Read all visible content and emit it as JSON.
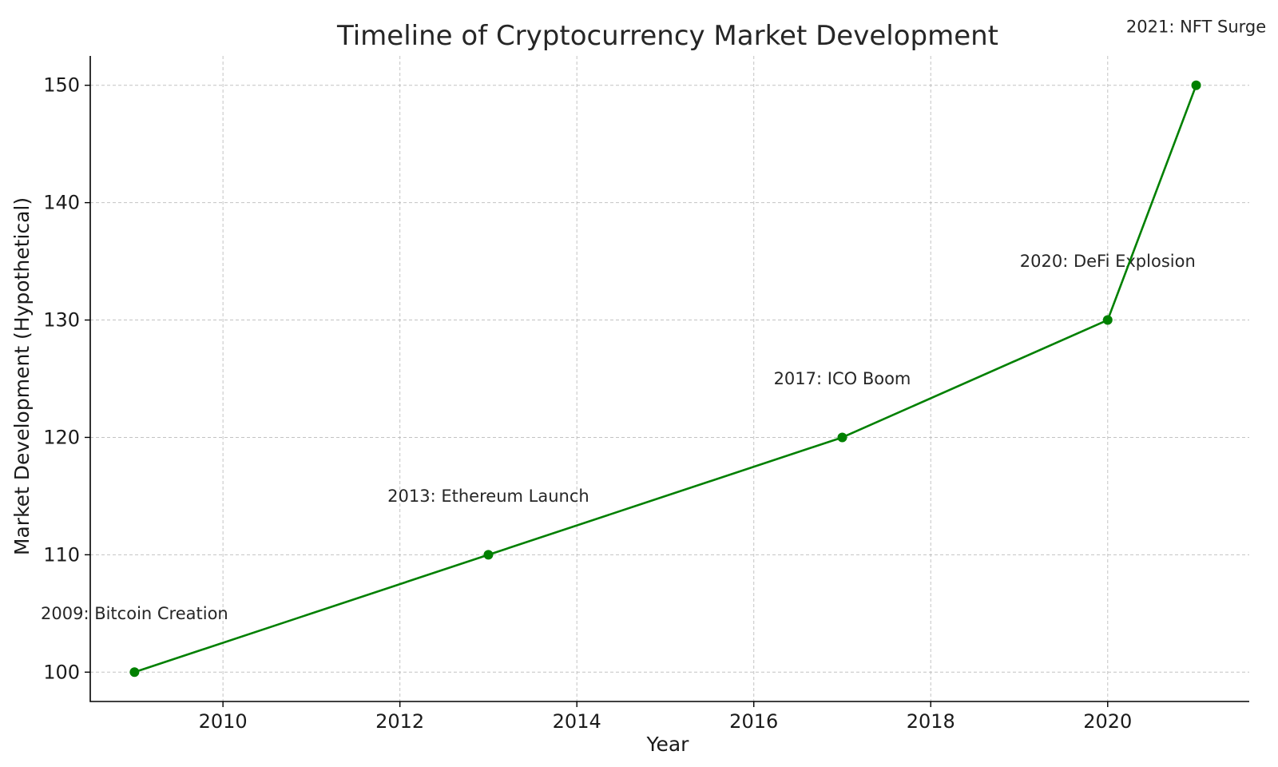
{
  "chart_data": {
    "type": "line",
    "title": "Timeline of Cryptocurrency Market Development",
    "xlabel": "Year",
    "ylabel": "Market Development (Hypothetical)",
    "x": [
      2009,
      2013,
      2017,
      2020,
      2021
    ],
    "series": [
      {
        "values": [
          100,
          110,
          120,
          130,
          150
        ],
        "color": "#008000",
        "marker": "circle"
      }
    ],
    "xlim": [
      2008.5,
      2021.6
    ],
    "ylim": [
      97.5,
      152.5
    ],
    "xticks": [
      2010,
      2012,
      2014,
      2016,
      2018,
      2020
    ],
    "yticks": [
      100,
      110,
      120,
      130,
      140,
      150
    ],
    "grid": true,
    "annotations": [
      {
        "text": "2009: Bitcoin Creation",
        "x": 2009,
        "y": 105
      },
      {
        "text": "2013: Ethereum Launch",
        "x": 2013,
        "y": 115
      },
      {
        "text": "2017: ICO Boom",
        "x": 2017,
        "y": 125
      },
      {
        "text": "2020: DeFi Explosion",
        "x": 2020,
        "y": 135
      },
      {
        "text": "2021: NFT Surge",
        "x": 2021,
        "y": 155
      }
    ]
  }
}
